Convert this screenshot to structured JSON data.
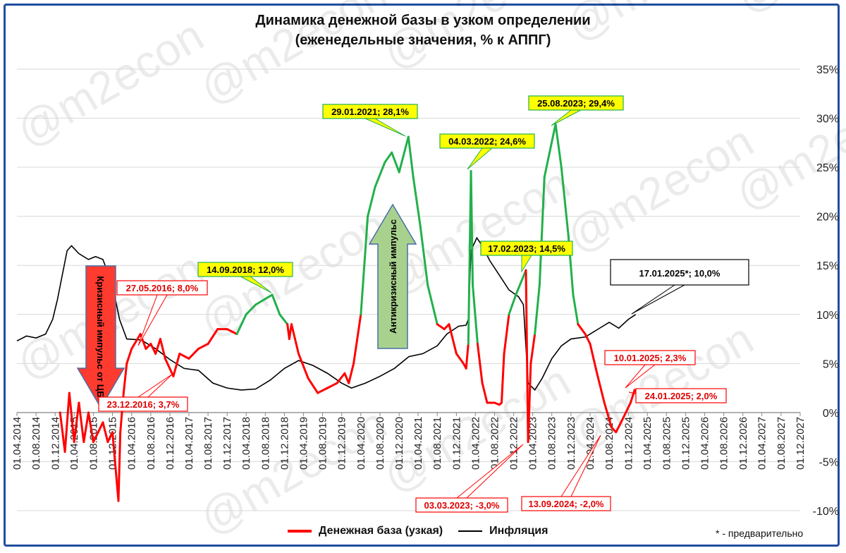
{
  "chart_data": {
    "type": "line",
    "title": "Динамика денежной базы в узком определении",
    "subtitle": "(еженедельные значения, % к АППГ)",
    "ylim": [
      -10,
      35
    ],
    "yticks": [
      "-10%",
      "-5%",
      "0%",
      "5%",
      "10%",
      "15%",
      "20%",
      "25%",
      "30%",
      "35%"
    ],
    "xlim": [
      "2014-04-01",
      "2027-12-01"
    ],
    "xticks": [
      "01.04.2014",
      "01.08.2014",
      "01.12.2014",
      "01.04.2015",
      "01.08.2015",
      "01.12.2015",
      "01.04.2016",
      "01.08.2016",
      "01.12.2016",
      "01.04.2017",
      "01.08.2017",
      "01.12.2017",
      "01.04.2018",
      "01.08.2018",
      "01.12.2018",
      "01.04.2019",
      "01.08.2019",
      "01.12.2019",
      "01.04.2020",
      "01.08.2020",
      "01.12.2020",
      "01.04.2021",
      "01.08.2021",
      "01.12.2021",
      "01.04.2022",
      "01.08.2022",
      "01.12.2022",
      "01.04.2023",
      "01.08.2023",
      "01.12.2023",
      "01.04.2024",
      "01.08.2024",
      "01.12.2024",
      "01.04.2025",
      "01.08.2025",
      "01.12.2025",
      "01.04.2026",
      "01.08.2026",
      "01.12.2026",
      "01.04.2027",
      "01.08.2027",
      "01.12.2027"
    ],
    "grid": true,
    "legend_position": "bottom",
    "series": [
      {
        "name": "Денежная база (узкая)",
        "color": "#ff0000",
        "highlight_color": "#22b04b",
        "points": [
          [
            "2015-01-01",
            0
          ],
          [
            "2015-02-01",
            -4
          ],
          [
            "2015-03-01",
            2
          ],
          [
            "2015-04-01",
            -3
          ],
          [
            "2015-05-01",
            1
          ],
          [
            "2015-06-01",
            -3
          ],
          [
            "2015-07-01",
            0
          ],
          [
            "2015-08-01",
            -3
          ],
          [
            "2015-09-01",
            -2
          ],
          [
            "2015-10-01",
            -1
          ],
          [
            "2015-11-01",
            -3
          ],
          [
            "2015-12-01",
            -2
          ],
          [
            "2016-01-08",
            -9
          ],
          [
            "2016-01-20",
            -2
          ],
          [
            "2016-02-10",
            2
          ],
          [
            "2016-03-01",
            5
          ],
          [
            "2016-04-01",
            6.5
          ],
          [
            "2016-05-27",
            8.0
          ],
          [
            "2016-07-01",
            6.5
          ],
          [
            "2016-08-01",
            7
          ],
          [
            "2016-09-01",
            6
          ],
          [
            "2016-10-01",
            7.5
          ],
          [
            "2016-11-01",
            5.5
          ],
          [
            "2016-12-23",
            3.7
          ],
          [
            "2017-02-01",
            6
          ],
          [
            "2017-04-01",
            5.5
          ],
          [
            "2017-06-01",
            6.5
          ],
          [
            "2017-08-01",
            7
          ],
          [
            "2017-10-01",
            8.5
          ],
          [
            "2017-12-01",
            8.5
          ],
          [
            "2018-02-01",
            8
          ],
          [
            "2018-04-01",
            10
          ],
          [
            "2018-06-01",
            11
          ],
          [
            "2018-09-14",
            12.0
          ],
          [
            "2018-11-01",
            10
          ],
          [
            "2018-12-20",
            9
          ],
          [
            "2019-01-01",
            7.5
          ],
          [
            "2019-01-15",
            9
          ],
          [
            "2019-03-01",
            6
          ],
          [
            "2019-05-01",
            3.5
          ],
          [
            "2019-07-01",
            2.0
          ],
          [
            "2019-09-01",
            2.5
          ],
          [
            "2019-11-01",
            3
          ],
          [
            "2019-12-20",
            4
          ],
          [
            "2020-01-15",
            3
          ],
          [
            "2020-02-15",
            5
          ],
          [
            "2020-04-01",
            10
          ],
          [
            "2020-05-15",
            20
          ],
          [
            "2020-07-01",
            23
          ],
          [
            "2020-09-01",
            25.5
          ],
          [
            "2020-10-15",
            26.5
          ],
          [
            "2020-12-01",
            24.5
          ],
          [
            "2021-01-29",
            28.1
          ],
          [
            "2021-03-01",
            24
          ],
          [
            "2021-04-15",
            19
          ],
          [
            "2021-06-01",
            13
          ],
          [
            "2021-08-01",
            9
          ],
          [
            "2021-09-15",
            8.5
          ],
          [
            "2021-10-15",
            9
          ],
          [
            "2021-12-01",
            6
          ],
          [
            "2022-01-15",
            5
          ],
          [
            "2022-02-01",
            4.5
          ],
          [
            "2022-02-15",
            7
          ],
          [
            "2022-03-04",
            24.6
          ],
          [
            "2022-03-15",
            13
          ],
          [
            "2022-04-15",
            7
          ],
          [
            "2022-05-15",
            3
          ],
          [
            "2022-06-15",
            1
          ],
          [
            "2022-08-01",
            1
          ],
          [
            "2022-09-01",
            0.8
          ],
          [
            "2022-09-15",
            1
          ],
          [
            "2022-10-01",
            6
          ],
          [
            "2022-11-01",
            10
          ],
          [
            "2022-12-15",
            12
          ],
          [
            "2023-02-17",
            14.5
          ],
          [
            "2023-03-03",
            -3.0
          ],
          [
            "2023-03-20",
            5
          ],
          [
            "2023-04-15",
            8
          ],
          [
            "2023-05-15",
            13
          ],
          [
            "2023-06-15",
            24
          ],
          [
            "2023-08-25",
            29.4
          ],
          [
            "2023-10-01",
            25
          ],
          [
            "2023-11-15",
            18
          ],
          [
            "2023-12-15",
            12
          ],
          [
            "2024-01-15",
            9
          ],
          [
            "2024-03-01",
            8
          ],
          [
            "2024-04-01",
            7
          ],
          [
            "2024-05-15",
            4
          ],
          [
            "2024-07-01",
            1
          ],
          [
            "2024-08-15",
            -1.5
          ],
          [
            "2024-09-13",
            -2.0
          ],
          [
            "2024-10-15",
            -1
          ],
          [
            "2024-11-15",
            0
          ],
          [
            "2024-12-15",
            1
          ],
          [
            "2025-01-10",
            2.3
          ],
          [
            "2025-01-24",
            2.0
          ]
        ]
      },
      {
        "name": "Инфляция",
        "color": "#000000",
        "points": [
          [
            "2014-04-01",
            7.3
          ],
          [
            "2014-06-01",
            7.8
          ],
          [
            "2014-08-01",
            7.6
          ],
          [
            "2014-10-01",
            8.0
          ],
          [
            "2014-11-15",
            9.5
          ],
          [
            "2014-12-15",
            11.5
          ],
          [
            "2015-01-15",
            14.0
          ],
          [
            "2015-02-15",
            16.5
          ],
          [
            "2015-03-15",
            17.0
          ],
          [
            "2015-05-01",
            16.2
          ],
          [
            "2015-07-01",
            15.6
          ],
          [
            "2015-08-15",
            15.9
          ],
          [
            "2015-10-01",
            15.6
          ],
          [
            "2015-12-01",
            13.0
          ],
          [
            "2016-01-15",
            9.5
          ],
          [
            "2016-03-01",
            7.5
          ],
          [
            "2016-06-01",
            7.4
          ],
          [
            "2016-09-01",
            6.5
          ],
          [
            "2016-12-01",
            5.4
          ],
          [
            "2017-03-01",
            4.5
          ],
          [
            "2017-06-01",
            4.3
          ],
          [
            "2017-09-01",
            3.0
          ],
          [
            "2017-12-01",
            2.5
          ],
          [
            "2018-03-01",
            2.3
          ],
          [
            "2018-06-01",
            2.4
          ],
          [
            "2018-09-01",
            3.3
          ],
          [
            "2018-12-01",
            4.5
          ],
          [
            "2019-03-01",
            5.3
          ],
          [
            "2019-06-01",
            4.8
          ],
          [
            "2019-09-01",
            4.0
          ],
          [
            "2019-12-01",
            3.0
          ],
          [
            "2020-02-01",
            2.5
          ],
          [
            "2020-05-01",
            3.0
          ],
          [
            "2020-08-01",
            3.7
          ],
          [
            "2020-11-01",
            4.5
          ],
          [
            "2021-02-01",
            5.7
          ],
          [
            "2021-05-01",
            6.0
          ],
          [
            "2021-08-01",
            6.8
          ],
          [
            "2021-10-01",
            8.0
          ],
          [
            "2021-12-15",
            8.8
          ],
          [
            "2022-02-01",
            8.9
          ],
          [
            "2022-02-15",
            9.5
          ],
          [
            "2022-03-04",
            16.5
          ],
          [
            "2022-04-10",
            17.8
          ],
          [
            "2022-05-15",
            17.0
          ],
          [
            "2022-07-01",
            15.5
          ],
          [
            "2022-09-01",
            14.0
          ],
          [
            "2022-11-01",
            12.5
          ],
          [
            "2023-01-01",
            11.8
          ],
          [
            "2023-02-01",
            11.0
          ],
          [
            "2023-03-03",
            3.0
          ],
          [
            "2023-04-15",
            2.3
          ],
          [
            "2023-06-01",
            3.5
          ],
          [
            "2023-08-01",
            5.5
          ],
          [
            "2023-10-01",
            6.8
          ],
          [
            "2023-12-01",
            7.5
          ],
          [
            "2024-03-01",
            7.7
          ],
          [
            "2024-06-01",
            8.6
          ],
          [
            "2024-08-01",
            9.2
          ],
          [
            "2024-10-01",
            8.6
          ],
          [
            "2024-12-01",
            9.5
          ],
          [
            "2025-01-17",
            10.0
          ]
        ]
      }
    ],
    "annotations": [
      {
        "text": "27.05.2016; 8,0%",
        "date": "2016-05-27",
        "value": 8.0,
        "style": "red"
      },
      {
        "text": "23.12.2016; 3,7%",
        "date": "2016-12-23",
        "value": 3.7,
        "style": "red"
      },
      {
        "text": "14.09.2018; 12,0%",
        "date": "2018-09-14",
        "value": 12.0,
        "style": "yellow"
      },
      {
        "text": "29.01.2021; 28,1%",
        "date": "2021-01-29",
        "value": 28.1,
        "style": "yellow"
      },
      {
        "text": "04.03.2022; 24,6%",
        "date": "2022-03-04",
        "value": 24.6,
        "style": "yellow"
      },
      {
        "text": "17.02.2023; 14,5%",
        "date": "2023-02-17",
        "value": 14.5,
        "style": "yellow"
      },
      {
        "text": "25.08.2023; 29,4%",
        "date": "2023-08-25",
        "value": 29.4,
        "style": "yellow"
      },
      {
        "text": "03.03.2023; -3,0%",
        "date": "2023-03-03",
        "value": -3.0,
        "style": "red"
      },
      {
        "text": "13.09.2024; -2,0%",
        "date": "2024-09-13",
        "value": -2.0,
        "style": "red"
      },
      {
        "text": "10.01.2025; 2,3%",
        "date": "2025-01-10",
        "value": 2.3,
        "style": "red"
      },
      {
        "text": "24.01.2025; 2,0%",
        "date": "2025-01-24",
        "value": 2.0,
        "style": "red"
      },
      {
        "text": "17.01.2025*; 10,0%",
        "date": "2025-01-17",
        "value": 10.0,
        "style": "black"
      }
    ],
    "arrows": [
      {
        "text": "Кризисный импульс от ЦБ",
        "direction": "down",
        "color": "#ff3b30"
      },
      {
        "text": "Антикризисный импульс",
        "direction": "up",
        "color": "#a9d18e"
      }
    ],
    "watermark": "@m2econ",
    "footnote": "* - предварительно"
  }
}
